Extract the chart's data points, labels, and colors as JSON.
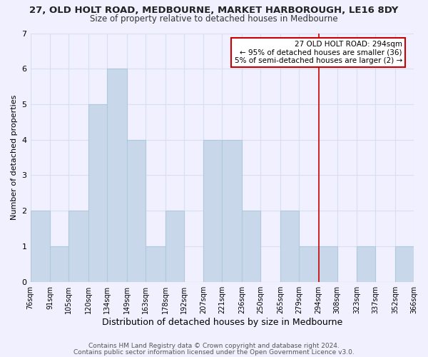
{
  "title": "27, OLD HOLT ROAD, MEDBOURNE, MARKET HARBOROUGH, LE16 8DY",
  "subtitle": "Size of property relative to detached houses in Medbourne",
  "xlabel": "Distribution of detached houses by size in Medbourne",
  "ylabel": "Number of detached properties",
  "bar_color": "#c8d8ea",
  "bar_edge_color": "#b0c8dc",
  "bin_edges": [
    76,
    91,
    105,
    120,
    134,
    149,
    163,
    178,
    192,
    207,
    221,
    236,
    250,
    265,
    279,
    294,
    308,
    323,
    337,
    352,
    366
  ],
  "bar_heights": [
    2,
    1,
    2,
    5,
    6,
    4,
    1,
    2,
    0,
    4,
    4,
    2,
    0,
    2,
    1,
    1,
    0,
    1,
    0,
    1
  ],
  "tick_labels": [
    "76sqm",
    "91sqm",
    "105sqm",
    "120sqm",
    "134sqm",
    "149sqm",
    "163sqm",
    "178sqm",
    "192sqm",
    "207sqm",
    "221sqm",
    "236sqm",
    "250sqm",
    "265sqm",
    "279sqm",
    "294sqm",
    "308sqm",
    "323sqm",
    "337sqm",
    "352sqm",
    "366sqm"
  ],
  "vline_x": 294,
  "vline_color": "#cc0000",
  "annotation_title": "27 OLD HOLT ROAD: 294sqm",
  "annotation_line1": "← 95% of detached houses are smaller (36)",
  "annotation_line2": "5% of semi-detached houses are larger (2) →",
  "annotation_box_facecolor": "#ffffff",
  "annotation_box_edgecolor": "#cc0000",
  "ylim": [
    0,
    7
  ],
  "yticks": [
    0,
    1,
    2,
    3,
    4,
    5,
    6,
    7
  ],
  "footnote1": "Contains HM Land Registry data © Crown copyright and database right 2024.",
  "footnote2": "Contains public sector information licensed under the Open Government Licence v3.0.",
  "background_color": "#f0f0ff",
  "grid_color": "#d8e0f0",
  "title_fontsize": 9.5,
  "subtitle_fontsize": 8.5,
  "xlabel_fontsize": 9,
  "ylabel_fontsize": 8,
  "tick_fontsize": 7,
  "footnote_fontsize": 6.5
}
